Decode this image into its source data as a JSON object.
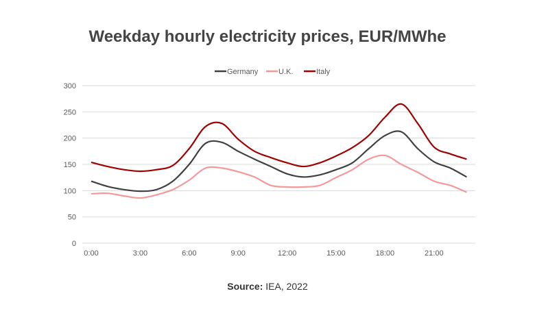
{
  "chart_data": {
    "type": "line",
    "title": "Weekday hourly electricity prices, EUR/MWhe",
    "source_label": "Source:",
    "source_text": "IEA, 2022",
    "x": [
      0,
      1,
      2,
      3,
      4,
      5,
      6,
      7,
      8,
      9,
      10,
      11,
      12,
      13,
      14,
      15,
      16,
      17,
      18,
      19,
      20,
      21,
      22,
      23
    ],
    "xticks": [
      "0:00",
      "3:00",
      "6:00",
      "9:00",
      "12:00",
      "15:00",
      "18:00",
      "21:00"
    ],
    "yticks": [
      "0",
      "50",
      "100",
      "150",
      "200",
      "250",
      "300"
    ],
    "ylim": [
      0,
      300
    ],
    "grid": true,
    "legend": "top",
    "series": [
      {
        "name": "Germany",
        "color": "#404040",
        "values": [
          118,
          108,
          102,
          99,
          102,
          118,
          150,
          190,
          192,
          175,
          160,
          146,
          132,
          126,
          130,
          140,
          153,
          180,
          205,
          212,
          180,
          155,
          143,
          126
        ]
      },
      {
        "name": "U.K.",
        "color": "#f4989a",
        "values": [
          94,
          95,
          90,
          86,
          92,
          102,
          120,
          143,
          143,
          136,
          126,
          110,
          107,
          107,
          110,
          125,
          140,
          160,
          167,
          150,
          135,
          118,
          110,
          97
        ]
      },
      {
        "name": "Italy",
        "color": "#a00000",
        "values": [
          154,
          146,
          140,
          137,
          140,
          148,
          180,
          222,
          228,
          198,
          175,
          163,
          153,
          146,
          153,
          166,
          182,
          205,
          240,
          265,
          228,
          183,
          170,
          160
        ]
      }
    ]
  }
}
